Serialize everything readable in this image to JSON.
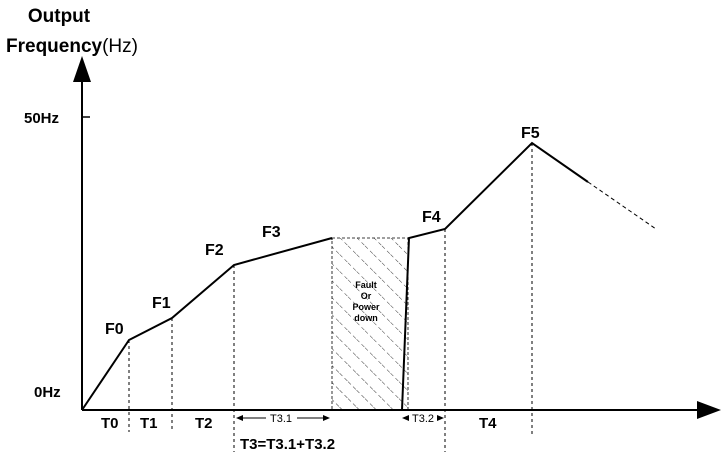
{
  "y_axis": {
    "title_line1": "Output",
    "title_line2_bold": "Frequency",
    "title_line2_unit": "(Hz)",
    "tick_top": "50Hz",
    "tick_bottom": "0Hz"
  },
  "points": {
    "f0": "F0",
    "f1": "F1",
    "f2": "F2",
    "f3": "F3",
    "f4": "F4",
    "f5": "F5"
  },
  "segments": {
    "t0": "T0",
    "t1": "T1",
    "t2": "T2",
    "t31": "T3.1",
    "t32": "T3.2",
    "t4": "T4",
    "t3_formula": "T3=T3.1+T3.2"
  },
  "fault_box": {
    "line1": "Fault",
    "line2": "Or",
    "line3": "Power",
    "line4": "down"
  }
}
